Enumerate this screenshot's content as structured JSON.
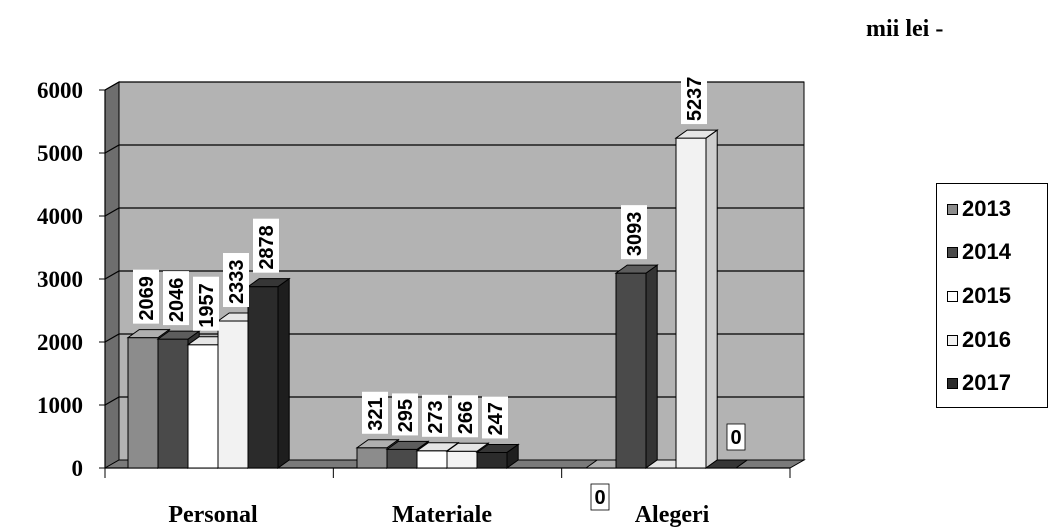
{
  "unit_label": "mii lei -",
  "colors": {
    "2013": "#8c8c8c",
    "2014": "#4a4a4a",
    "2015": "#ffffff",
    "2016": "#f2f2f2",
    "2017": "#2b2b2b",
    "plot_background": "#b3b3b3"
  },
  "chart_data": {
    "type": "bar",
    "style": "3d-clustered-column",
    "categories": [
      "Personal",
      "Materiale",
      "Alegeri"
    ],
    "series": [
      {
        "name": "2013",
        "values": [
          2069,
          321,
          0
        ]
      },
      {
        "name": "2014",
        "values": [
          2046,
          295,
          3093
        ]
      },
      {
        "name": "2015",
        "values": [
          1957,
          273,
          0
        ]
      },
      {
        "name": "2016",
        "values": [
          2333,
          266,
          5237
        ]
      },
      {
        "name": "2017",
        "values": [
          2878,
          247,
          0
        ]
      }
    ],
    "ylim": [
      0,
      6000
    ],
    "yticks": [
      "0",
      "1000",
      "2000",
      "3000",
      "4000",
      "5000",
      "6000"
    ],
    "grid": true,
    "legend_position": "right"
  }
}
